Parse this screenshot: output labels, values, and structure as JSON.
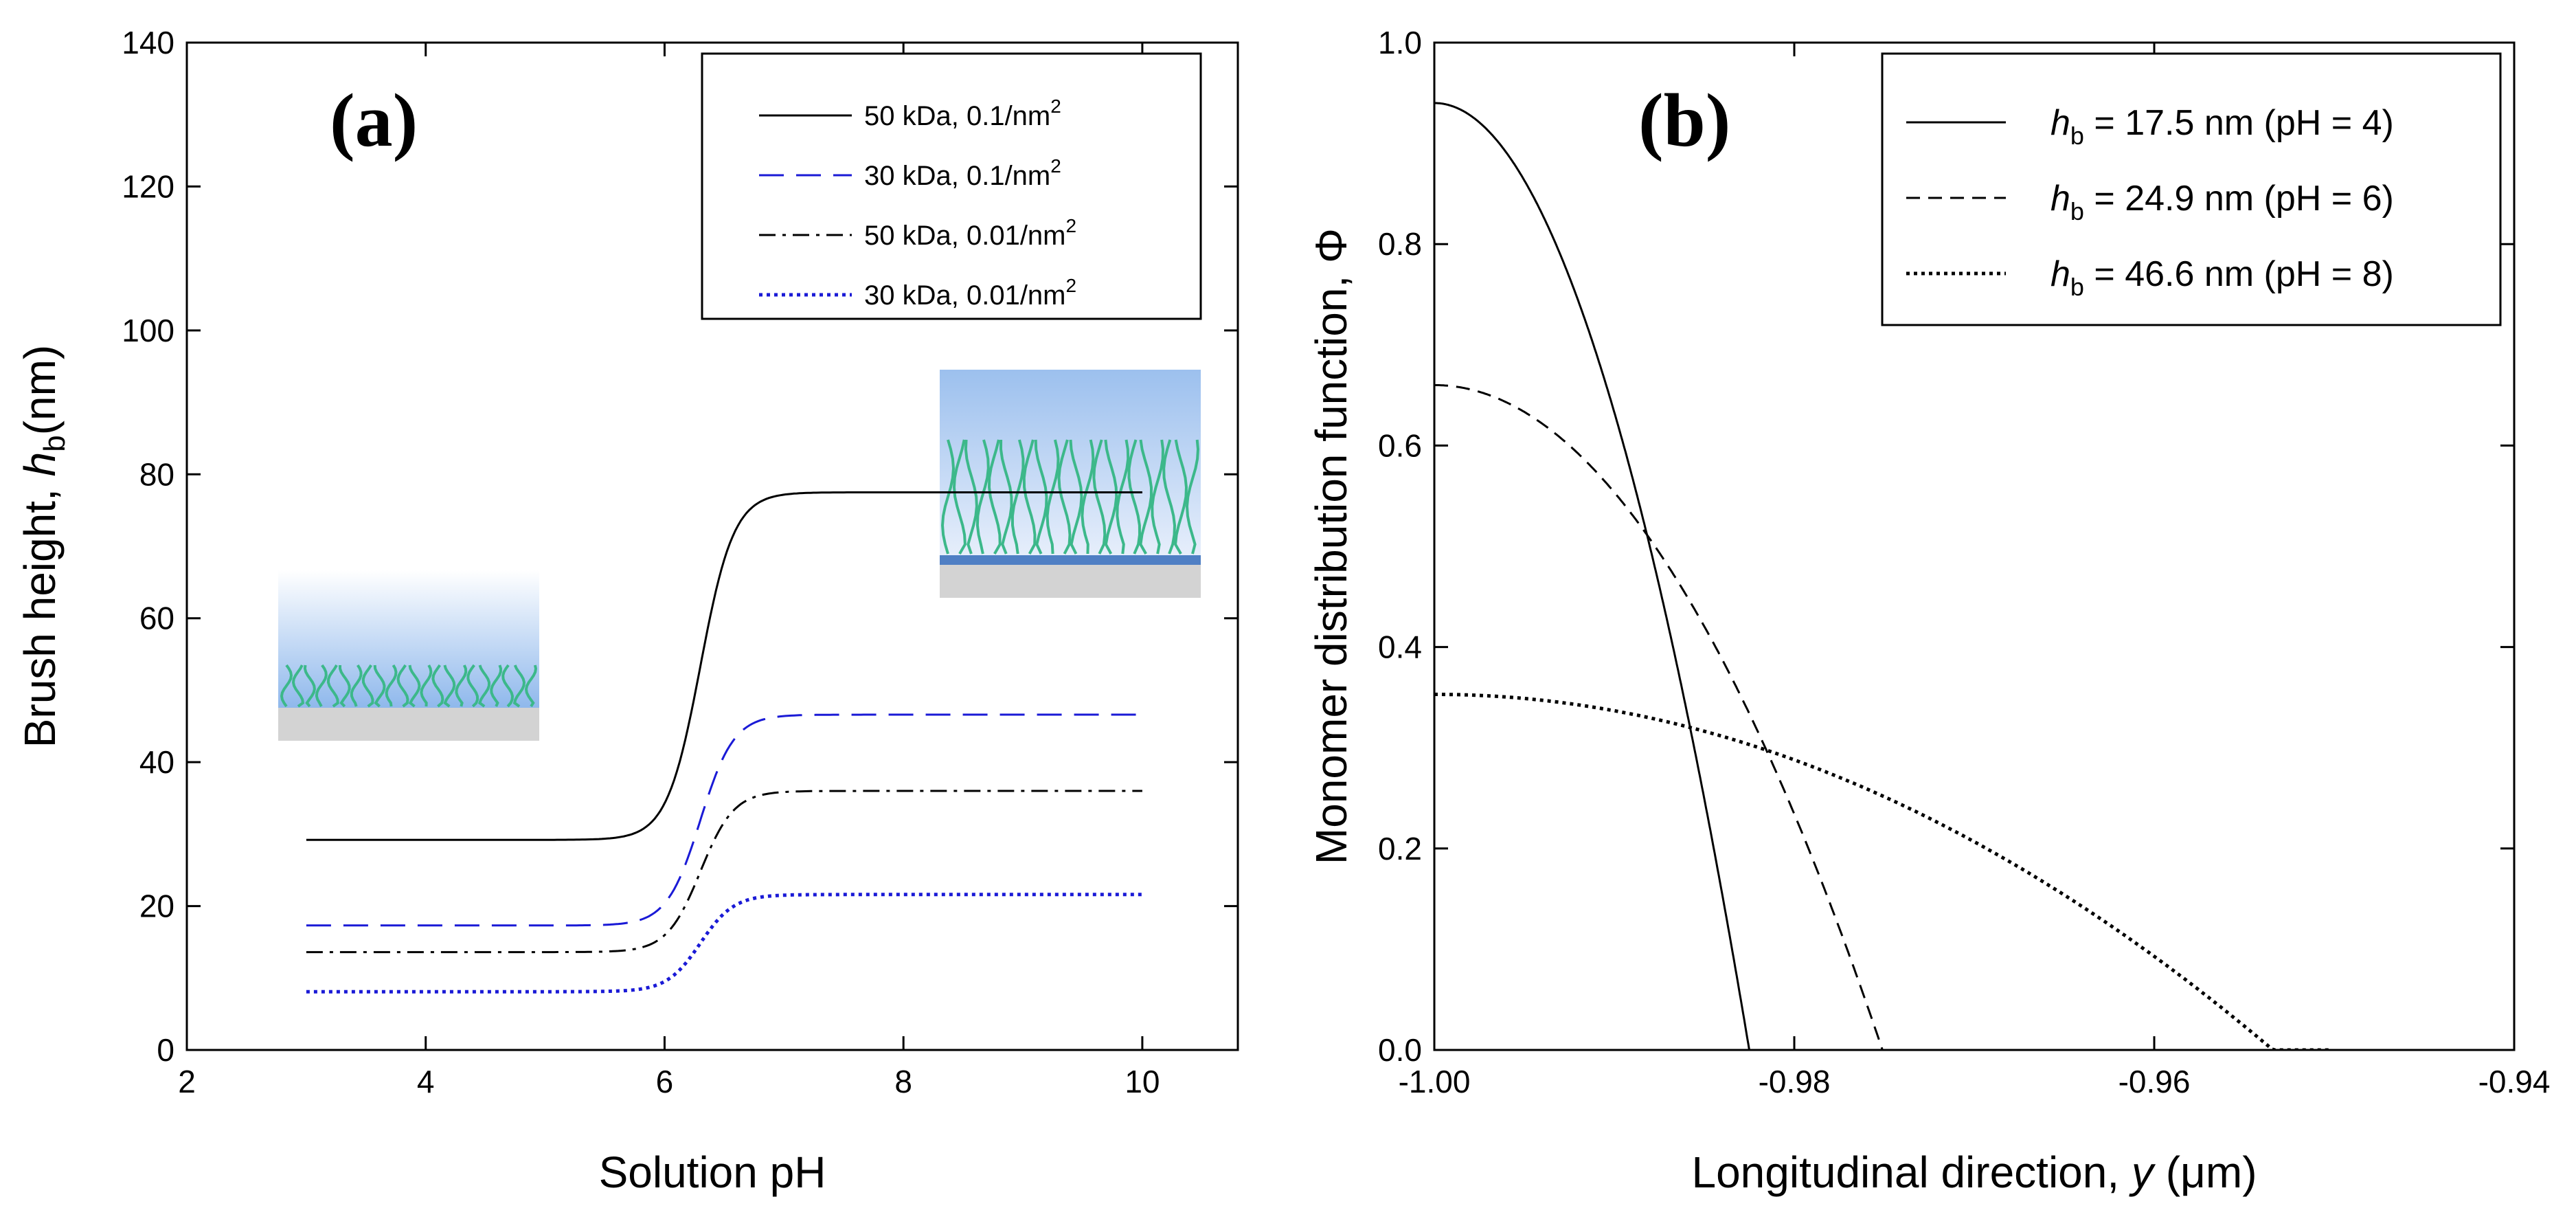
{
  "chart_data": [
    {
      "type": "line",
      "panel_label": "(a)",
      "xlabel": "Solution pH",
      "ylabel_prefix": "Brush height, ",
      "ylabel_var": "h",
      "ylabel_sub": "b",
      "ylabel_suffix": "(nm)",
      "xlim": [
        2,
        10.8
      ],
      "ylim": [
        0,
        140
      ],
      "xticks": [
        2,
        4,
        6,
        8,
        10
      ],
      "yticks": [
        0,
        20,
        40,
        60,
        80,
        100,
        120,
        140
      ],
      "grid": false,
      "legend_position": "top-right",
      "series": [
        {
          "name": "50 kDa, 0.1/nm",
          "name_sup": "2",
          "color": "#000000",
          "dash": "solid",
          "low": 29.2,
          "high": 77.5,
          "mid": 6.3,
          "width": 0.14
        },
        {
          "name": "30 kDa, 0.1/nm",
          "name_sup": "2",
          "color": "#1a1ad6",
          "dash": "long-dash",
          "low": 17.3,
          "high": 46.6,
          "mid": 6.3,
          "width": 0.14
        },
        {
          "name": "50 kDa, 0.01/nm",
          "name_sup": "2",
          "color": "#000000",
          "dash": "dash-dot",
          "low": 13.6,
          "high": 36.0,
          "mid": 6.3,
          "width": 0.14
        },
        {
          "name": "30 kDa, 0.01/nm",
          "name_sup": "2",
          "color": "#1a1ad6",
          "dash": "dotted",
          "low": 8.1,
          "high": 21.6,
          "mid": 6.3,
          "width": 0.14
        }
      ],
      "x_range": [
        3,
        10
      ],
      "insets": [
        {
          "name": "collapsed-brush-inset",
          "depicts": "short polymer brush on substrate at low pH"
        },
        {
          "name": "extended-brush-inset",
          "depicts": "extended polymer brush on substrate at high pH"
        }
      ]
    },
    {
      "type": "line",
      "panel_label": "(b)",
      "xlabel_prefix": "Longitudinal direction, ",
      "xlabel_var": "y",
      "xlabel_suffix": " (μm)",
      "ylabel": "Monomer distribution function, Φ",
      "xlim": [
        -1.0,
        -0.94
      ],
      "ylim": [
        0.0,
        1.0
      ],
      "xticks": [
        -1.0,
        -0.98,
        -0.96,
        -0.94
      ],
      "xtick_labels": [
        "-1.00",
        "-0.98",
        "-0.96",
        "-0.94"
      ],
      "yticks": [
        0.0,
        0.2,
        0.4,
        0.6,
        0.8,
        1.0
      ],
      "ytick_labels": [
        "0.0",
        "0.2",
        "0.4",
        "0.6",
        "0.8",
        "1.0"
      ],
      "grid": false,
      "legend_position": "top-right",
      "series": [
        {
          "name_var": "h",
          "name_sub": "b",
          "name_rest": " = 17.5 nm (pH = 4)",
          "dash": "solid",
          "peak": 0.94,
          "end_x": -0.9825
        },
        {
          "name_var": "h",
          "name_sub": "b",
          "name_rest": " = 24.9 nm (pH = 6)",
          "dash": "dashed",
          "peak": 0.66,
          "end_x": -0.9751
        },
        {
          "name_var": "h",
          "name_sub": "b",
          "name_rest": " = 46.6 nm (pH = 8)",
          "dash": "dotted",
          "peak": 0.353,
          "end_x": -0.9534,
          "x_max": -0.9503
        }
      ]
    }
  ]
}
